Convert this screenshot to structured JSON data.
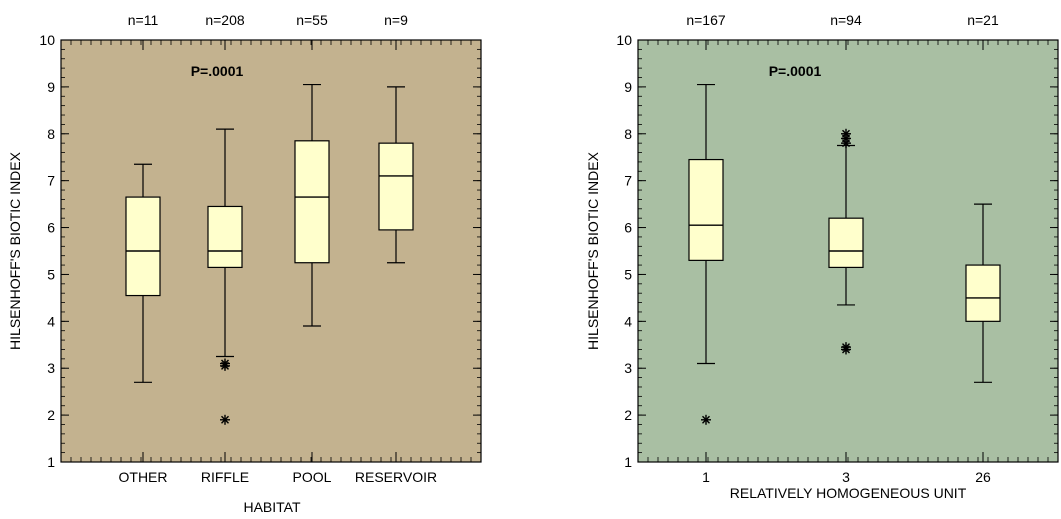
{
  "chart_data": [
    {
      "type": "boxplot",
      "xlabel": "HABITAT",
      "ylabel": "HILSENHOFF'S BIOTIC INDEX",
      "ylim": [
        1,
        10
      ],
      "yticks": [
        1,
        2,
        3,
        4,
        5,
        6,
        7,
        8,
        9,
        10
      ],
      "annotation": "P=.0001",
      "background_color": "#c3b28f",
      "box_color": "#ffffcc",
      "categories": [
        "OTHER",
        "RIFFLE",
        "POOL",
        "RESERVOIR"
      ],
      "counts": [
        "n=11",
        "n=208",
        "n=55",
        "n=9"
      ],
      "boxes": [
        {
          "category": "OTHER",
          "whisker_low": 2.7,
          "q1": 4.55,
          "median": 5.5,
          "q3": 6.65,
          "whisker_high": 7.35,
          "outliers": []
        },
        {
          "category": "RIFFLE",
          "whisker_low": 3.25,
          "q1": 5.15,
          "median": 5.5,
          "q3": 6.45,
          "whisker_high": 8.1,
          "outliers": [
            3.05,
            3.1,
            1.9
          ]
        },
        {
          "category": "POOL",
          "whisker_low": 3.9,
          "q1": 5.25,
          "median": 6.65,
          "q3": 7.85,
          "whisker_high": 9.05,
          "outliers": []
        },
        {
          "category": "RESERVOIR",
          "whisker_low": 5.25,
          "q1": 5.95,
          "median": 7.1,
          "q3": 7.8,
          "whisker_high": 9.0,
          "outliers": []
        }
      ]
    },
    {
      "type": "boxplot",
      "xlabel": "RELATIVELY HOMOGENEOUS UNIT",
      "ylabel": "HILSENHOFF'S BIOTIC INDEX",
      "ylim": [
        1,
        10
      ],
      "yticks": [
        1,
        2,
        3,
        4,
        5,
        6,
        7,
        8,
        9,
        10
      ],
      "annotation": "P=.0001",
      "background_color": "#a9bfa3",
      "box_color": "#ffffcc",
      "categories": [
        "1",
        "3",
        "26"
      ],
      "counts": [
        "n=167",
        "n=94",
        "n=21"
      ],
      "boxes": [
        {
          "category": "1",
          "whisker_low": 3.1,
          "q1": 5.3,
          "median": 6.05,
          "q3": 7.45,
          "whisker_high": 9.05,
          "outliers": [
            1.9
          ]
        },
        {
          "category": "3",
          "whisker_low": 4.35,
          "q1": 5.15,
          "median": 5.5,
          "q3": 6.2,
          "whisker_high": 7.75,
          "outliers": [
            8.0,
            7.9,
            7.8,
            3.45,
            3.4
          ]
        },
        {
          "category": "26",
          "whisker_low": 2.7,
          "q1": 4.0,
          "median": 4.5,
          "q3": 5.2,
          "whisker_high": 6.5,
          "outliers": []
        }
      ]
    }
  ]
}
